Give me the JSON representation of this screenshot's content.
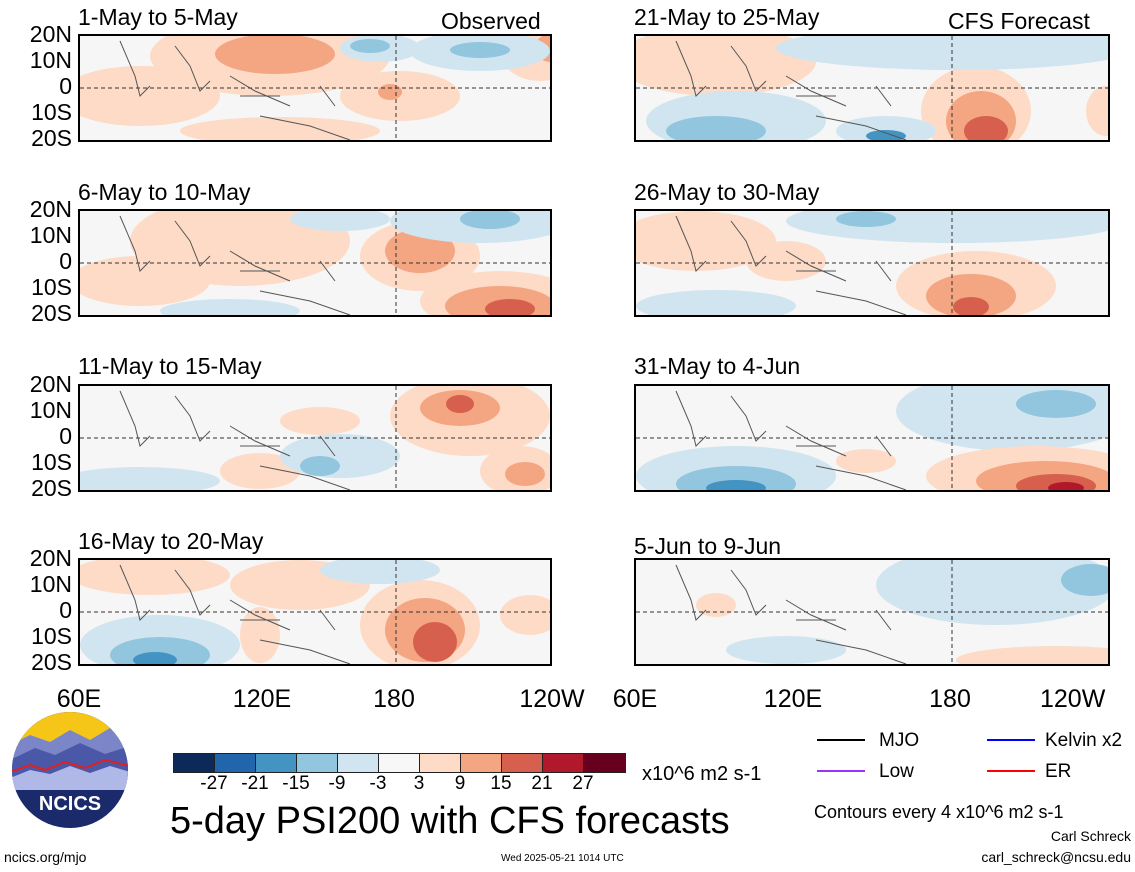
{
  "header": {
    "observed_label": "Observed",
    "forecast_label": "CFS Forecast"
  },
  "lat_labels": [
    "20N",
    "10N",
    "0",
    "10S",
    "20S"
  ],
  "lon_labels": [
    "60E",
    "120E",
    "180",
    "120W"
  ],
  "panels": [
    {
      "title": "1-May to 5-May",
      "column": "observed"
    },
    {
      "title": "6-May to 10-May",
      "column": "observed"
    },
    {
      "title": "11-May to 15-May",
      "column": "observed"
    },
    {
      "title": "16-May to 20-May",
      "column": "observed"
    },
    {
      "title": "21-May to 25-May",
      "column": "forecast"
    },
    {
      "title": "26-May to 30-May",
      "column": "forecast"
    },
    {
      "title": "31-May to 4-Jun",
      "column": "forecast"
    },
    {
      "title": "5-Jun to 9-Jun",
      "column": "forecast"
    }
  ],
  "colorbar": {
    "colors": [
      "#0b2a5a",
      "#2166ac",
      "#4393c3",
      "#92c5de",
      "#d1e5f0",
      "#f7f7f7",
      "#fddbc7",
      "#f4a582",
      "#d6604d",
      "#b2182b",
      "#67001f"
    ],
    "labels": [
      "-27",
      "-21",
      "-15",
      "-9",
      "-3",
      "3",
      "9",
      "15",
      "21",
      "27"
    ],
    "units": "x10^6 m2 s-1"
  },
  "legend": {
    "items": [
      {
        "label": "MJO",
        "color": "#000000"
      },
      {
        "label": "Kelvin x2",
        "color": "#0000ff"
      },
      {
        "label": "Low",
        "color": "#9933ff"
      },
      {
        "label": "ER",
        "color": "#ff0000"
      }
    ],
    "contours_note": "Contours every 4 x10^6 m2 s-1"
  },
  "footer": {
    "title": "5-day PSI200 with CFS forecasts",
    "logo_text": "NCICS",
    "url": "ncics.org/mjo",
    "timestamp": "Wed 2025-05-21 1014 UTC",
    "author": "Carl Schreck",
    "email": "carl_schreck@ncsu.edu"
  }
}
